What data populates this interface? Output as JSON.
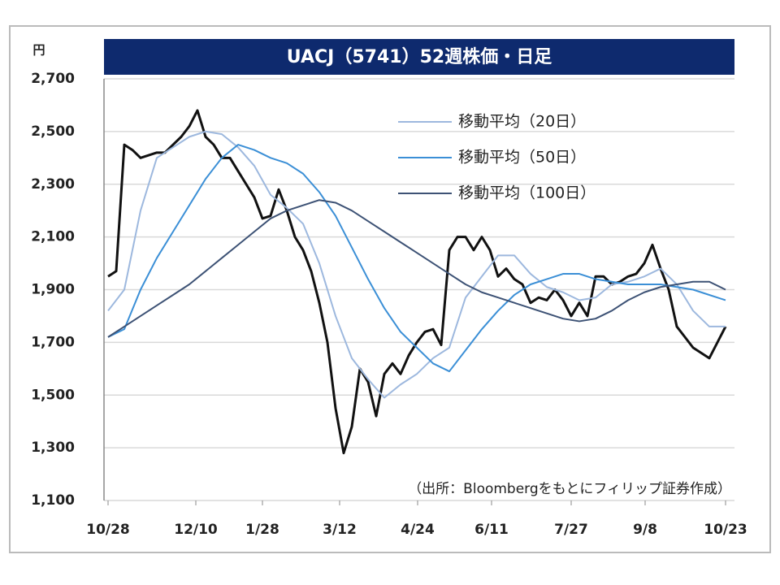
{
  "chart_data": {
    "type": "line",
    "title": "UACJ（5741）52週株価・日足",
    "y_label": "円",
    "annotation": "（出所：Bloombergをもとにフィリップ証券作成）",
    "xlim": [
      0,
      76
    ],
    "xticks": [
      {
        "value": 0,
        "label": "10/28"
      },
      {
        "value": 10.8,
        "label": "12/10"
      },
      {
        "value": 19,
        "label": "1/28"
      },
      {
        "value": 28.5,
        "label": "3/12"
      },
      {
        "value": 38.1,
        "label": "4/24"
      },
      {
        "value": 47.2,
        "label": "6/11"
      },
      {
        "value": 57,
        "label": "7/27"
      },
      {
        "value": 66.1,
        "label": "9/8"
      },
      {
        "value": 76,
        "label": "10/23"
      }
    ],
    "ylim": [
      1100,
      2700
    ],
    "yticks": [
      {
        "value": 1100,
        "label": "1,100"
      },
      {
        "value": 1300,
        "label": "1,300"
      },
      {
        "value": 1500,
        "label": "1,500"
      },
      {
        "value": 1700,
        "label": "1,700"
      },
      {
        "value": 1900,
        "label": "1,900"
      },
      {
        "value": 2100,
        "label": "2,100"
      },
      {
        "value": 2300,
        "label": "2,300"
      },
      {
        "value": 2500,
        "label": "2,500"
      },
      {
        "value": 2700,
        "label": "2,700"
      }
    ],
    "grid": true,
    "series": [
      {
        "color": "#111111",
        "x": [
          0,
          1,
          2,
          3,
          4,
          5,
          6,
          7,
          8,
          9,
          10,
          11,
          12,
          13,
          14,
          15,
          16,
          17,
          18,
          19,
          20,
          21,
          22,
          23,
          24,
          25,
          26,
          27,
          28,
          29,
          30,
          31,
          32,
          33,
          34,
          35,
          36,
          37,
          38,
          39,
          40,
          41,
          42,
          43,
          44,
          45,
          46,
          47,
          48,
          49,
          50,
          51,
          52,
          53,
          54,
          55,
          56,
          57,
          58,
          59,
          60,
          61,
          62,
          63,
          64,
          65,
          66,
          67,
          68,
          69,
          70,
          71,
          72,
          73,
          74,
          75,
          76
        ],
        "values": [
          1950,
          1970,
          2450,
          2430,
          2400,
          2410,
          2420,
          2420,
          2450,
          2480,
          2520,
          2580,
          2480,
          2450,
          2400,
          2400,
          2350,
          2300,
          2250,
          2170,
          2180,
          2280,
          2200,
          2100,
          2050,
          1970,
          1850,
          1700,
          1450,
          1280,
          1380,
          1600,
          1550,
          1420,
          1580,
          1620,
          1580,
          1650,
          1700,
          1740,
          1750,
          1690,
          2050,
          2100,
          2100,
          2050,
          2100,
          2050,
          1950,
          1980,
          1940,
          1920,
          1850,
          1870,
          1860,
          1900,
          1860,
          1800,
          1850,
          1800,
          1950,
          1950,
          1920,
          1930,
          1950,
          1960,
          2000,
          2070,
          1980,
          1900,
          1760,
          1720,
          1680,
          1660,
          1640,
          1700,
          1760
        ]
      },
      {
        "name": "移動平均（20日）",
        "color": "#9db8de",
        "x": [
          0,
          2,
          4,
          6,
          8,
          10,
          12,
          14,
          16,
          18,
          20,
          22,
          24,
          26,
          28,
          30,
          32,
          34,
          36,
          38,
          40,
          42,
          44,
          46,
          48,
          50,
          52,
          54,
          56,
          58,
          60,
          62,
          64,
          66,
          68,
          70,
          72,
          74,
          76
        ],
        "values": [
          1820,
          1900,
          2200,
          2400,
          2440,
          2480,
          2500,
          2490,
          2440,
          2370,
          2260,
          2210,
          2150,
          2000,
          1800,
          1640,
          1560,
          1490,
          1540,
          1580,
          1640,
          1680,
          1870,
          1950,
          2030,
          2030,
          1960,
          1910,
          1890,
          1860,
          1870,
          1920,
          1930,
          1950,
          1980,
          1920,
          1820,
          1760,
          1760
        ]
      },
      {
        "name": "移動平均（50日）",
        "color": "#3b8fd6",
        "x": [
          0,
          2,
          4,
          6,
          8,
          10,
          12,
          14,
          16,
          18,
          20,
          22,
          24,
          26,
          28,
          30,
          32,
          34,
          36,
          38,
          40,
          42,
          44,
          46,
          48,
          50,
          52,
          54,
          56,
          58,
          60,
          62,
          64,
          66,
          68,
          70,
          72,
          74,
          76
        ],
        "values": [
          1720,
          1750,
          1900,
          2020,
          2120,
          2220,
          2320,
          2400,
          2450,
          2430,
          2400,
          2380,
          2340,
          2270,
          2180,
          2060,
          1940,
          1830,
          1740,
          1680,
          1620,
          1590,
          1670,
          1750,
          1820,
          1880,
          1920,
          1940,
          1960,
          1960,
          1940,
          1930,
          1920,
          1920,
          1920,
          1910,
          1900,
          1880,
          1860
        ]
      },
      {
        "name": "移動平均（100日）",
        "color": "#3d5275",
        "x": [
          0,
          2,
          4,
          6,
          8,
          10,
          12,
          14,
          16,
          18,
          20,
          22,
          24,
          26,
          28,
          30,
          32,
          34,
          36,
          38,
          40,
          42,
          44,
          46,
          48,
          50,
          52,
          54,
          56,
          58,
          60,
          62,
          64,
          66,
          68,
          70,
          72,
          74,
          76
        ],
        "values": [
          1720,
          1760,
          1800,
          1840,
          1880,
          1920,
          1970,
          2020,
          2070,
          2120,
          2170,
          2200,
          2220,
          2240,
          2230,
          2200,
          2160,
          2120,
          2080,
          2040,
          2000,
          1960,
          1920,
          1890,
          1870,
          1850,
          1830,
          1810,
          1790,
          1780,
          1790,
          1820,
          1860,
          1890,
          1910,
          1920,
          1930,
          1930,
          1900
        ]
      }
    ]
  }
}
